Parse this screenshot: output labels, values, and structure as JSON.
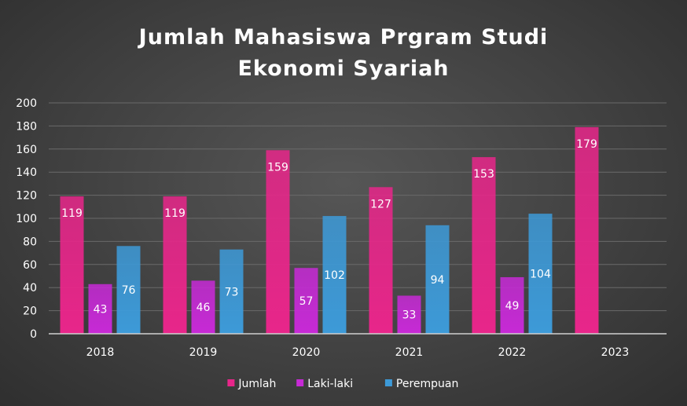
{
  "chart_data": {
    "type": "bar",
    "title_lines": [
      "Jumlah Mahasiswa Prgram Studi",
      "Ekonomi Syariah"
    ],
    "categories": [
      "2018",
      "2019",
      "2020",
      "2021",
      "2022",
      "2023"
    ],
    "series": [
      {
        "name": "Jumlah",
        "values": [
          119,
          119,
          159,
          127,
          153,
          179
        ],
        "color": "#e8268a"
      },
      {
        "name": "Laki-laki",
        "values": [
          43,
          46,
          57,
          33,
          49,
          null
        ],
        "color": "#c72ad6"
      },
      {
        "name": "Perempuan",
        "values": [
          76,
          73,
          102,
          94,
          104,
          null
        ],
        "color": "#3d9ad8"
      }
    ],
    "ylim": [
      0,
      200
    ],
    "yticks": [
      0,
      20,
      40,
      60,
      80,
      100,
      120,
      140,
      160,
      180,
      200
    ],
    "grid": true,
    "legend_position": "bottom",
    "data_labels": true
  }
}
